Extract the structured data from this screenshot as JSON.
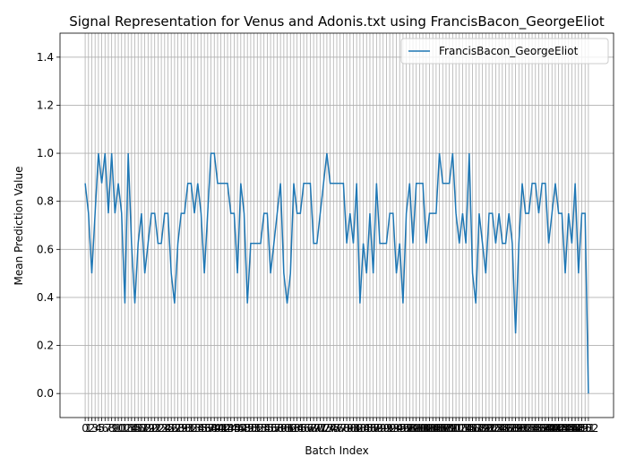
{
  "chart_data": {
    "type": "line",
    "title": "Signal Representation for Venus and Adonis.txt using FrancisBacon_GeorgeEliot",
    "x_label": "Batch Index",
    "y_label": "Mean Prediction Value",
    "x": [
      0,
      1,
      2,
      3,
      4,
      5,
      6,
      7,
      8,
      9,
      10,
      11,
      12,
      13,
      14,
      15,
      16,
      17,
      18,
      19,
      20,
      21,
      22,
      23,
      24,
      25,
      26,
      27,
      28,
      29,
      30,
      31,
      32,
      33,
      34,
      35,
      36,
      37,
      38,
      39,
      40,
      41,
      42,
      43,
      44,
      45,
      46,
      47,
      48,
      49,
      50,
      51,
      52,
      53,
      54,
      55,
      56,
      57,
      58,
      59,
      60,
      61,
      62,
      63,
      64,
      65,
      66,
      67,
      68,
      69,
      70,
      71,
      72,
      73,
      74,
      75,
      76,
      77,
      78,
      79,
      80,
      81,
      82,
      83,
      84,
      85,
      86,
      87,
      88,
      89,
      90,
      91,
      92,
      93,
      94,
      95,
      96,
      97,
      98,
      99,
      100,
      101,
      102,
      103,
      104,
      105,
      106,
      107,
      108,
      109,
      110,
      111,
      112,
      113,
      114,
      115,
      116,
      117,
      118,
      119,
      120,
      121,
      122,
      123,
      124,
      125,
      126,
      127,
      128,
      129,
      130,
      131,
      132,
      133,
      134,
      135,
      136,
      137,
      138,
      139,
      140,
      141,
      142,
      143,
      144,
      145,
      146,
      147,
      148,
      149,
      150,
      151,
      152
    ],
    "series": [
      {
        "name": "FrancisBacon_GeorgeEliot",
        "color": "#1f77b4",
        "values": [
          0.875,
          0.75,
          0.5,
          0.75,
          1,
          0.875,
          1,
          0.75,
          1,
          0.75,
          0.875,
          0.75,
          0.375,
          1,
          0.625,
          0.375,
          0.625,
          0.75,
          0.5,
          0.625,
          0.75,
          0.75,
          0.625,
          0.625,
          0.75,
          0.75,
          0.5,
          0.375,
          0.625,
          0.75,
          0.75,
          0.875,
          0.875,
          0.75,
          0.875,
          0.75,
          0.5,
          0.75,
          1,
          1,
          0.875,
          0.875,
          0.875,
          0.875,
          0.75,
          0.75,
          0.5,
          0.875,
          0.75,
          0.375,
          0.625,
          0.625,
          0.625,
          0.625,
          0.75,
          0.75,
          0.5,
          0.625,
          0.75,
          0.875,
          0.5,
          0.375,
          0.5,
          0.875,
          0.75,
          0.75,
          0.875,
          0.875,
          0.875,
          0.625,
          0.625,
          0.75,
          0.875,
          1,
          0.875,
          0.875,
          0.875,
          0.875,
          0.875,
          0.625,
          0.75,
          0.625,
          0.875,
          0.375,
          0.625,
          0.5,
          0.75,
          0.5,
          0.875,
          0.625,
          0.625,
          0.625,
          0.75,
          0.75,
          0.5,
          0.625,
          0.375,
          0.75,
          0.875,
          0.625,
          0.875,
          0.875,
          0.875,
          0.625,
          0.75,
          0.75,
          0.75,
          1,
          0.875,
          0.875,
          0.875,
          1,
          0.75,
          0.625,
          0.75,
          0.625,
          1,
          0.5,
          0.375,
          0.75,
          0.625,
          0.5,
          0.75,
          0.75,
          0.625,
          0.75,
          0.625,
          0.625,
          0.75,
          0.625,
          0.25,
          0.625,
          0.875,
          0.75,
          0.75,
          0.875,
          0.875,
          0.75,
          0.875,
          0.875,
          0.625,
          0.75,
          0.875,
          0.75,
          0.75,
          0.5,
          0.75,
          0.625,
          0.875,
          0.5,
          0.75,
          0.75,
          0
        ]
      }
    ],
    "xlim": [
      -7.6,
      159.6
    ],
    "ylim": [
      -0.1,
      1.5
    ],
    "yticks": [
      {
        "value": 0,
        "label": "0.0"
      },
      {
        "value": 0.2,
        "label": "0.2"
      },
      {
        "value": 0.4,
        "label": "0.4"
      },
      {
        "value": 0.6,
        "label": "0.6"
      },
      {
        "value": 0.8,
        "label": "0.8"
      },
      {
        "value": 1,
        "label": "1.0"
      },
      {
        "value": 1.2,
        "label": "1.2"
      },
      {
        "value": 1.4,
        "label": "1.4"
      }
    ],
    "grid": true,
    "legend": "upper right"
  }
}
